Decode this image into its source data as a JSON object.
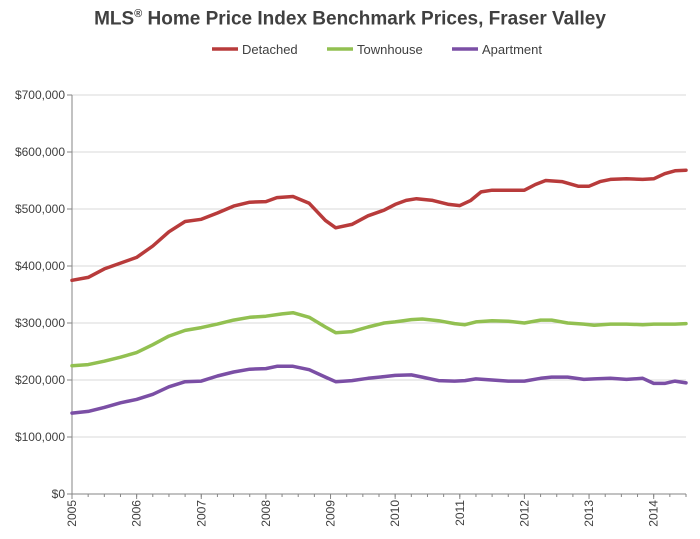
{
  "chart_data": {
    "type": "line",
    "title": "MLS® Home Price Index Benchmark Prices, Fraser Valley",
    "xlabel": "",
    "ylabel": "",
    "xlim": [
      2005,
      2014.5
    ],
    "ylim": [
      0,
      700000
    ],
    "y_ticks": [
      0,
      100000,
      200000,
      300000,
      400000,
      500000,
      600000,
      700000
    ],
    "y_tick_labels": [
      "$0",
      "$100,000",
      "$200,000",
      "$300,000",
      "$400,000",
      "$500,000",
      "$600,000",
      "$700,000"
    ],
    "x_ticks": [
      2005,
      2006,
      2007,
      2008,
      2009,
      2010,
      2011,
      2012,
      2013,
      2014
    ],
    "x_tick_labels": [
      "2005",
      "2006",
      "2007",
      "2008",
      "2009",
      "2010",
      "2011",
      "2012",
      "2013",
      "2014"
    ],
    "grid": "horizontal",
    "legend_position": "top",
    "series": [
      {
        "name": "Detached",
        "color": "#b83b3b",
        "x": [
          2005.0,
          2005.25,
          2005.5,
          2005.75,
          2006.0,
          2006.25,
          2006.5,
          2006.75,
          2007.0,
          2007.25,
          2007.5,
          2007.75,
          2008.0,
          2008.17,
          2008.42,
          2008.67,
          2008.92,
          2009.08,
          2009.33,
          2009.58,
          2009.83,
          2010.0,
          2010.17,
          2010.33,
          2010.58,
          2010.83,
          2011.0,
          2011.17,
          2011.33,
          2011.5,
          2011.75,
          2012.0,
          2012.17,
          2012.33,
          2012.58,
          2012.83,
          2013.0,
          2013.17,
          2013.33,
          2013.58,
          2013.83,
          2014.0,
          2014.17,
          2014.33,
          2014.5
        ],
        "y": [
          375000,
          380000,
          395000,
          405000,
          415000,
          435000,
          460000,
          478000,
          482000,
          493000,
          505000,
          512000,
          513000,
          520000,
          522000,
          510000,
          480000,
          467000,
          473000,
          488000,
          498000,
          508000,
          515000,
          518000,
          515000,
          508000,
          506000,
          515000,
          530000,
          533000,
          533000,
          533000,
          543000,
          550000,
          548000,
          540000,
          540000,
          548000,
          552000,
          553000,
          552000,
          553000,
          562000,
          567000,
          568000
        ]
      },
      {
        "name": "Townhouse",
        "color": "#92c051",
        "x": [
          2005.0,
          2005.25,
          2005.5,
          2005.75,
          2006.0,
          2006.25,
          2006.5,
          2006.75,
          2007.0,
          2007.25,
          2007.5,
          2007.75,
          2008.0,
          2008.25,
          2008.42,
          2008.67,
          2008.92,
          2009.08,
          2009.33,
          2009.58,
          2009.83,
          2010.0,
          2010.25,
          2010.42,
          2010.67,
          2010.92,
          2011.08,
          2011.25,
          2011.5,
          2011.75,
          2012.0,
          2012.25,
          2012.42,
          2012.67,
          2012.92,
          2013.08,
          2013.33,
          2013.58,
          2013.83,
          2014.0,
          2014.17,
          2014.33,
          2014.5
        ],
        "y": [
          225000,
          227000,
          233000,
          240000,
          248000,
          262000,
          277000,
          287000,
          292000,
          298000,
          305000,
          310000,
          312000,
          316000,
          318000,
          310000,
          293000,
          283000,
          285000,
          293000,
          300000,
          302000,
          306000,
          307000,
          304000,
          299000,
          297000,
          302000,
          304000,
          303000,
          300000,
          305000,
          305000,
          300000,
          298000,
          296000,
          298000,
          298000,
          297000,
          298000,
          298000,
          298000,
          299000
        ]
      },
      {
        "name": "Apartment",
        "color": "#7b4fa5",
        "x": [
          2005.0,
          2005.25,
          2005.5,
          2005.75,
          2006.0,
          2006.25,
          2006.5,
          2006.75,
          2007.0,
          2007.25,
          2007.5,
          2007.75,
          2008.0,
          2008.17,
          2008.42,
          2008.67,
          2008.92,
          2009.08,
          2009.33,
          2009.58,
          2009.83,
          2010.0,
          2010.25,
          2010.42,
          2010.67,
          2010.92,
          2011.08,
          2011.25,
          2011.5,
          2011.75,
          2012.0,
          2012.25,
          2012.42,
          2012.67,
          2012.92,
          2013.08,
          2013.33,
          2013.58,
          2013.83,
          2014.0,
          2014.17,
          2014.33,
          2014.5
        ],
        "y": [
          142000,
          145000,
          152000,
          160000,
          166000,
          175000,
          188000,
          197000,
          198000,
          207000,
          214000,
          219000,
          220000,
          224000,
          224000,
          218000,
          205000,
          197000,
          199000,
          203000,
          206000,
          208000,
          209000,
          205000,
          199000,
          198000,
          199000,
          202000,
          200000,
          198000,
          198000,
          203000,
          205000,
          205000,
          201000,
          202000,
          203000,
          201000,
          203000,
          194000,
          194000,
          198000,
          195000
        ]
      }
    ]
  }
}
